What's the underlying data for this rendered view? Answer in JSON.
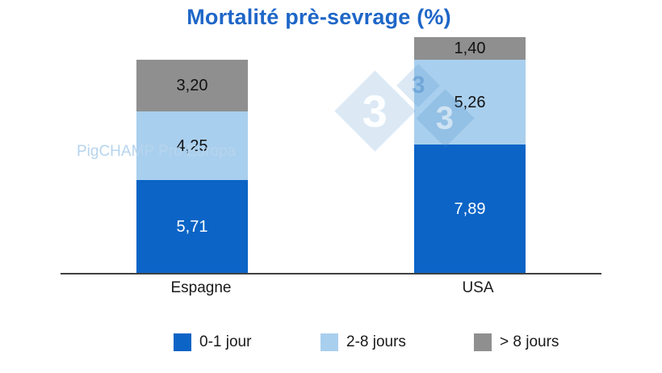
{
  "title": "Mortalité prè-sevrage (%)",
  "chart_data": {
    "type": "bar",
    "stacked": true,
    "title": "Mortalité prè-sevrage (%)",
    "categories": [
      "Espagne",
      "USA"
    ],
    "series": [
      {
        "name": "0-1 jour",
        "color": "#0b64c6",
        "values": [
          5.71,
          7.89
        ],
        "labels": [
          "5,71",
          "7,89"
        ],
        "label_color": "#ffffff"
      },
      {
        "name": "2-8 jours",
        "color": "#a9cfee",
        "values": [
          4.25,
          5.26
        ],
        "labels": [
          "4,25",
          "5,26"
        ],
        "label_color": "#111111"
      },
      {
        "name": "> 8 jours",
        "color": "#8f8f8f",
        "values": [
          3.2,
          1.4
        ],
        "labels": [
          "3,20",
          "1,40"
        ],
        "label_color": "#111111"
      }
    ],
    "totals": [
      13.16,
      14.55
    ],
    "ylim": [
      0,
      15
    ],
    "grid": false,
    "legend_position": "bottom",
    "decimal_separator": ","
  },
  "legend": {
    "items": [
      {
        "label": "0-1 jour",
        "color": "#0b64c6"
      },
      {
        "label": "2-8 jours",
        "color": "#a9cfee"
      },
      {
        "label": "> 8 jours",
        "color": "#8f8f8f"
      }
    ]
  },
  "watermark": {
    "text": "PigCHAMP Pro Europa",
    "logo_threes": [
      "3",
      "3",
      "3"
    ]
  },
  "colors": {
    "title": "#1e66c8",
    "axis_line": "#414141",
    "watermark_text": "#b6d4ee"
  }
}
